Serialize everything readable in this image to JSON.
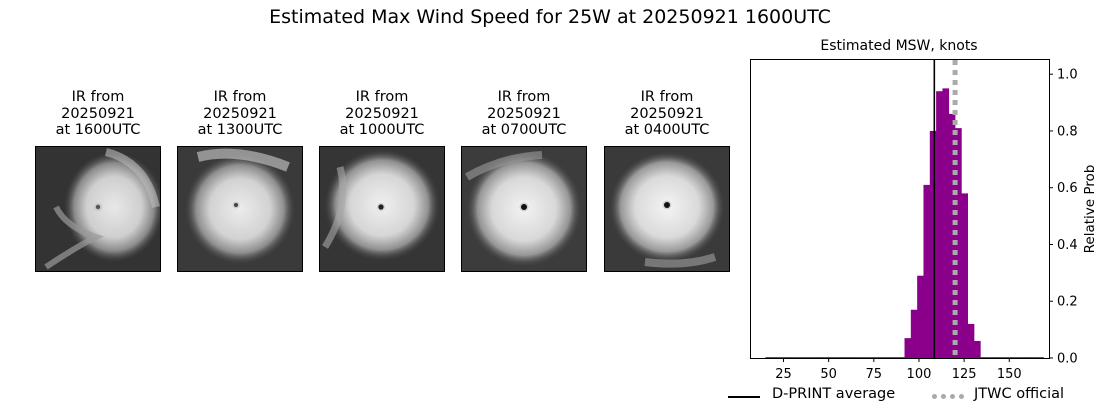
{
  "title": "Estimated Max Wind Speed for 25W at 20250921 1600UTC",
  "ir_panels": [
    {
      "line1": "IR from",
      "line2": "20250921",
      "line3": "at 1600UTC"
    },
    {
      "line1": "IR from",
      "line2": "20250921",
      "line3": "at 1300UTC"
    },
    {
      "line1": "IR from",
      "line2": "20250921",
      "line3": "at 1000UTC"
    },
    {
      "line1": "IR from",
      "line2": "20250921",
      "line3": "at 0700UTC"
    },
    {
      "line1": "IR from",
      "line2": "20250921",
      "line3": "at 0400UTC"
    }
  ],
  "chart_data": {
    "type": "bar",
    "title": "Estimated MSW, knots",
    "xlabel": "",
    "ylabel": "Relative Prob",
    "xlim": [
      7,
      172
    ],
    "ylim": [
      0,
      1.05
    ],
    "xticks": [
      25,
      50,
      75,
      100,
      125,
      150
    ],
    "yticks": [
      0.0,
      0.2,
      0.4,
      0.6,
      0.8,
      1.0
    ],
    "ytick_labels": [
      "0.0",
      "0.2",
      "0.4",
      "0.6",
      "0.8",
      "1.0"
    ],
    "bar_width": 3.5,
    "bar_color": "#8b008b",
    "bins": [
      15,
      18.5,
      22,
      25.5,
      29,
      32.5,
      36,
      39.5,
      43,
      46.5,
      50,
      53.5,
      57,
      60.5,
      64,
      67.5,
      71,
      74.5,
      78,
      81.5,
      85,
      88.5,
      92,
      95.5,
      99,
      102.5,
      106,
      109.5,
      113,
      116.5,
      120,
      123.5,
      127,
      130.5,
      134,
      137.5,
      141,
      144.5,
      148,
      151.5,
      155,
      158.5,
      162,
      165.5
    ],
    "values": [
      0.003,
      0.003,
      0.003,
      0.003,
      0.003,
      0.003,
      0.003,
      0.003,
      0.003,
      0.003,
      0.003,
      0.003,
      0.003,
      0.003,
      0.003,
      0.003,
      0.003,
      0.003,
      0.003,
      0.003,
      0.003,
      0.003,
      0.07,
      0.17,
      0.29,
      0.61,
      0.8,
      0.94,
      0.95,
      0.86,
      0.81,
      0.58,
      0.12,
      0.06,
      0.003,
      0.003,
      0.003,
      0.003,
      0.003,
      0.003,
      0.003,
      0.003,
      0.003,
      0.003
    ],
    "dprint_average": 108.5,
    "jtwc_official": 120,
    "legend": {
      "dprint": "D-PRINT average",
      "jtwc": "JTWC official"
    },
    "legend_placement": "bottom",
    "grid": false
  }
}
